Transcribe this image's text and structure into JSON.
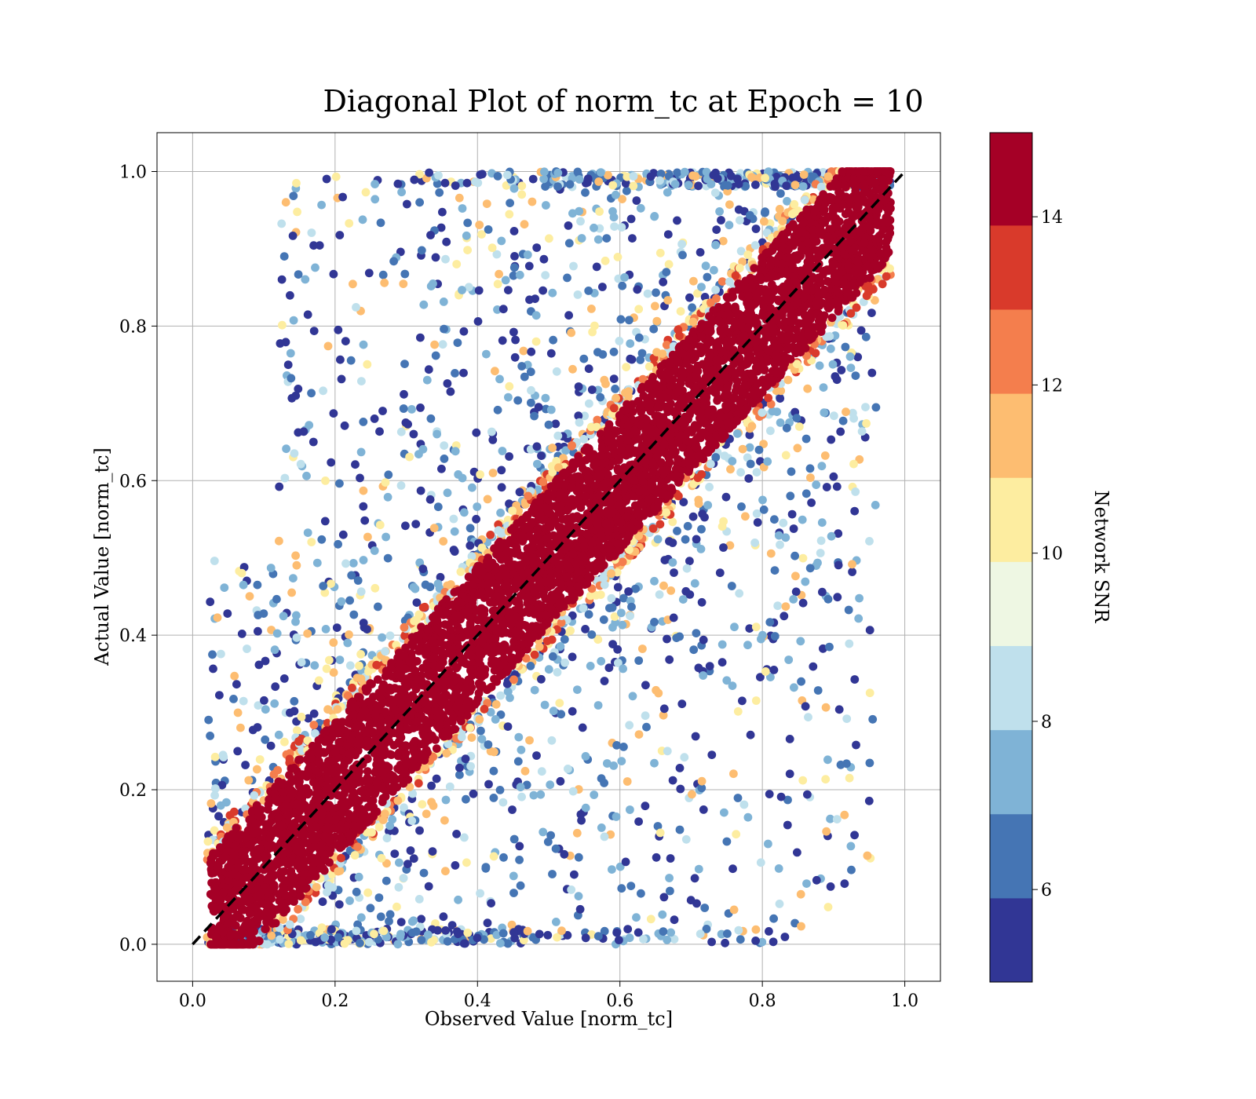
{
  "chart_data": {
    "type": "scatter",
    "title": "Diagonal Plot of norm_tc at Epoch = 10",
    "xlabel": "Observed Value [norm_tc]",
    "ylabel": "Actual Value [norm_tc]",
    "xlim": [
      -0.05,
      1.05
    ],
    "ylim": [
      -0.05,
      1.05
    ],
    "xticks": [
      "0.0",
      "0.2",
      "0.4",
      "0.6",
      "0.8",
      "1.0"
    ],
    "yticks": [
      "0.0",
      "0.2",
      "0.4",
      "0.6",
      "0.8",
      "1.0"
    ],
    "grid": true,
    "reference_line": {
      "style": "dashed",
      "color": "#000000",
      "points": [
        [
          0,
          0
        ],
        [
          1,
          1
        ]
      ]
    },
    "colorbar": {
      "label": "Network SNR",
      "range": [
        4.9,
        15
      ],
      "ticks": [
        "6",
        "8",
        "10",
        "12",
        "14"
      ],
      "colors": [
        "#313695",
        "#4575b4",
        "#74add1",
        "#abd9e9",
        "#e0f3f8",
        "#ffffbf",
        "#fee090",
        "#fdae61",
        "#f46d43",
        "#a50026"
      ],
      "bands": [
        {
          "from": 4.9,
          "to": 5.9,
          "color": "#313695"
        },
        {
          "from": 5.9,
          "to": 6.9,
          "color": "#4575b4"
        },
        {
          "from": 6.9,
          "to": 7.9,
          "color": "#7fb3d6"
        },
        {
          "from": 7.9,
          "to": 8.9,
          "color": "#bfe0ec"
        },
        {
          "from": 8.9,
          "to": 9.9,
          "color": "#eef7e3"
        },
        {
          "from": 9.9,
          "to": 10.9,
          "color": "#fdeda0"
        },
        {
          "from": 10.9,
          "to": 11.9,
          "color": "#fdbd71"
        },
        {
          "from": 11.9,
          "to": 12.9,
          "color": "#f47e4d"
        },
        {
          "from": 12.9,
          "to": 13.9,
          "color": "#d93a2b"
        },
        {
          "from": 13.9,
          "to": 15.0,
          "color": "#a50026"
        }
      ]
    },
    "series_description": {
      "high_snr_band": {
        "snr": 15,
        "color": "#a50026",
        "center": "y = x",
        "half_width": 0.09
      },
      "scatter_low_snr": {
        "snr_range": [
          5,
          13
        ],
        "colors": [
          "#313695",
          "#4575b4",
          "#7fb3d6",
          "#bfe0ec",
          "#fdeda0"
        ]
      }
    }
  }
}
